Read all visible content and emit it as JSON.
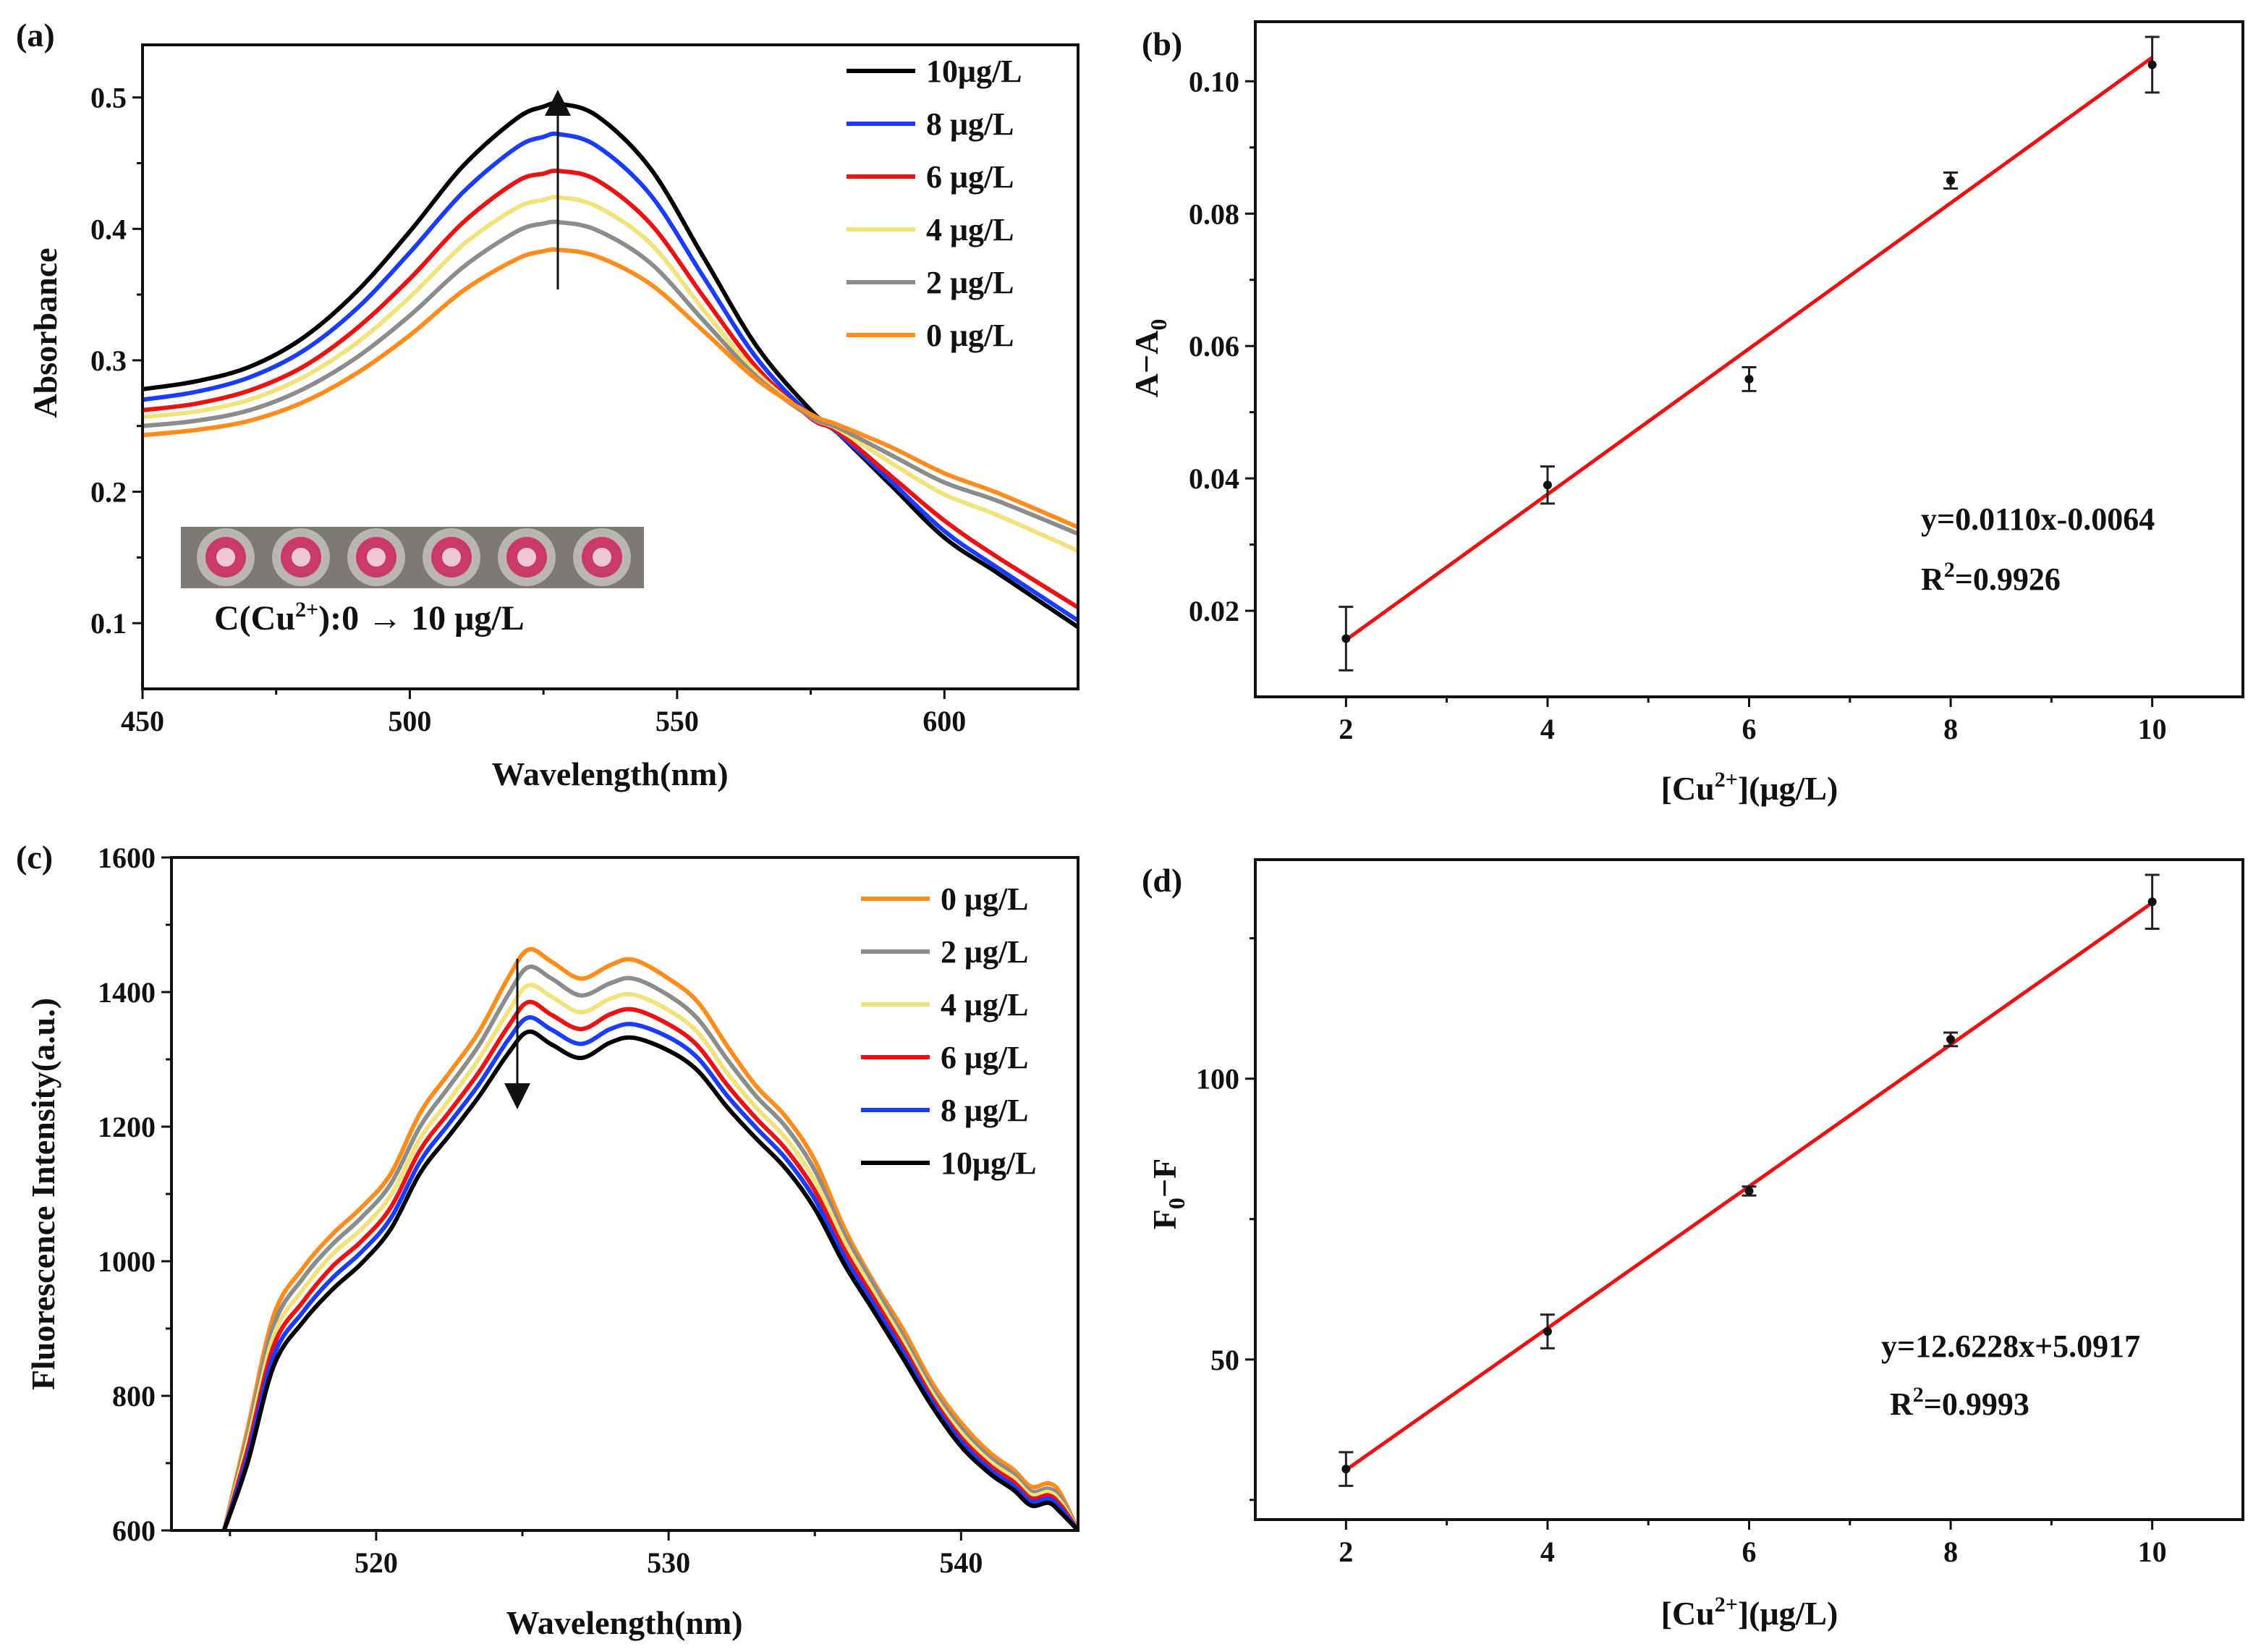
{
  "chart_data": [
    {
      "panel": "(a)",
      "type": "line",
      "title": "",
      "xlabel": "Wavelength(nm)",
      "ylabel": "Absorbance",
      "xlim": [
        450,
        625
      ],
      "ylim": [
        0.05,
        0.54
      ],
      "xticks": [
        450,
        500,
        550,
        600
      ],
      "yticks": [
        0.1,
        0.2,
        0.3,
        0.4,
        0.5
      ],
      "ytick_labels": [
        "0.1",
        "0.2",
        "0.3",
        "0.4",
        "0.5"
      ],
      "legend": "top-right",
      "inset_caption": "C(Cu2+):0 → 10 μg/L",
      "arrow": "up",
      "x": [
        450,
        460,
        470,
        480,
        490,
        500,
        510,
        520,
        525,
        528,
        535,
        545,
        555,
        565,
        575,
        580,
        590,
        600,
        610,
        625
      ],
      "series": [
        {
          "name": "10μg/L",
          "color": "#000000",
          "values": [
            0.278,
            0.284,
            0.295,
            0.317,
            0.352,
            0.398,
            0.448,
            0.484,
            0.493,
            0.495,
            0.486,
            0.446,
            0.378,
            0.31,
            0.262,
            0.245,
            0.205,
            0.165,
            0.138,
            0.097
          ]
        },
        {
          "name": "8  μg/L",
          "color": "#1a3cff",
          "values": [
            0.27,
            0.276,
            0.287,
            0.307,
            0.339,
            0.382,
            0.428,
            0.462,
            0.47,
            0.472,
            0.463,
            0.426,
            0.363,
            0.301,
            0.258,
            0.245,
            0.208,
            0.17,
            0.142,
            0.102
          ]
        },
        {
          "name": "6  μg/L",
          "color": "#ee1111",
          "values": [
            0.262,
            0.267,
            0.277,
            0.295,
            0.324,
            0.362,
            0.405,
            0.436,
            0.442,
            0.444,
            0.437,
            0.404,
            0.348,
            0.294,
            0.256,
            0.246,
            0.212,
            0.178,
            0.15,
            0.112
          ]
        },
        {
          "name": "4  μg/L",
          "color": "#f2e27a",
          "values": [
            0.257,
            0.261,
            0.27,
            0.287,
            0.313,
            0.348,
            0.388,
            0.416,
            0.422,
            0.424,
            0.417,
            0.389,
            0.338,
            0.29,
            0.257,
            0.248,
            0.222,
            0.198,
            0.182,
            0.155
          ]
        },
        {
          "name": "2  μg/L",
          "color": "#8c8c8c",
          "values": [
            0.25,
            0.254,
            0.262,
            0.278,
            0.302,
            0.334,
            0.371,
            0.398,
            0.404,
            0.405,
            0.399,
            0.374,
            0.33,
            0.287,
            0.257,
            0.249,
            0.228,
            0.207,
            0.193,
            0.168
          ]
        },
        {
          "name": "0  μg/L",
          "color": "#ff8c1a",
          "values": [
            0.243,
            0.247,
            0.254,
            0.268,
            0.29,
            0.319,
            0.353,
            0.377,
            0.383,
            0.384,
            0.379,
            0.358,
            0.322,
            0.285,
            0.259,
            0.251,
            0.234,
            0.214,
            0.199,
            0.173
          ]
        }
      ]
    },
    {
      "panel": "(b)",
      "type": "scatter",
      "title": "",
      "xlabel": "[Cu2+](μg/L)",
      "ylabel": "A−A0",
      "xlim": [
        1.1,
        10.9
      ],
      "ylim": [
        0.007,
        0.109
      ],
      "xticks": [
        2,
        4,
        6,
        8,
        10
      ],
      "yticks": [
        0.02,
        0.04,
        0.06,
        0.08,
        0.1
      ],
      "ytick_labels": [
        "0.02",
        "0.04",
        "0.06",
        "0.08",
        "0.10"
      ],
      "x": [
        2,
        4,
        6,
        8,
        10
      ],
      "values": [
        0.0158,
        0.039,
        0.055,
        0.085,
        0.1025
      ],
      "errors": [
        0.0048,
        0.0028,
        0.0018,
        0.0012,
        0.0042
      ],
      "fit": {
        "slope": 0.011,
        "intercept": -0.0064
      },
      "equation": "y=0.0110x-0.0064",
      "r2_value": "0.9926"
    },
    {
      "panel": "(c)",
      "type": "line",
      "title": "",
      "xlabel": "Wavelength(nm)",
      "ylabel": "Fluorescence Intensity(a.u.)",
      "xlim": [
        513,
        544
      ],
      "ylim": [
        600,
        1600
      ],
      "xticks": [
        520,
        530,
        540
      ],
      "yticks": [
        600,
        800,
        1000,
        1200,
        1400,
        1600
      ],
      "ytick_labels": [
        "600",
        "800",
        "1000",
        "1200",
        "1400",
        "1600"
      ],
      "legend": "top-right",
      "arrow": "down",
      "x": [
        514.8,
        515.6,
        516.5,
        517.5,
        518.5,
        519.5,
        520.5,
        521.5,
        522.5,
        523.5,
        524.5,
        525.2,
        526,
        527,
        528,
        528.8,
        530,
        531,
        532,
        533,
        534,
        535,
        536,
        537,
        538,
        539,
        540,
        541,
        541.8,
        542.4,
        543,
        543.4,
        544
      ],
      "series": [
        {
          "name": "0  μg/L",
          "color": "#ff8c1a",
          "values": [
            600,
            750,
            920,
            990,
            1040,
            1080,
            1130,
            1220,
            1280,
            1340,
            1420,
            1463,
            1445,
            1420,
            1440,
            1448,
            1420,
            1385,
            1320,
            1260,
            1215,
            1150,
            1050,
            970,
            900,
            820,
            760,
            715,
            690,
            665,
            670,
            655,
            600
          ]
        },
        {
          "name": "2  μg/L",
          "color": "#8c8c8c",
          "values": [
            600,
            740,
            905,
            975,
            1025,
            1065,
            1115,
            1200,
            1260,
            1320,
            1395,
            1437,
            1420,
            1395,
            1413,
            1420,
            1395,
            1360,
            1300,
            1245,
            1200,
            1135,
            1040,
            965,
            890,
            812,
            752,
            708,
            684,
            658,
            662,
            648,
            600
          ]
        },
        {
          "name": "4  μg/L",
          "color": "#f2e27a",
          "values": [
            600,
            730,
            890,
            958,
            1010,
            1048,
            1098,
            1182,
            1240,
            1300,
            1370,
            1410,
            1393,
            1370,
            1390,
            1396,
            1373,
            1340,
            1280,
            1228,
            1183,
            1120,
            1030,
            955,
            882,
            805,
            745,
            702,
            678,
            653,
            657,
            643,
            600
          ]
        },
        {
          "name": "6  μg/L",
          "color": "#ee1111",
          "values": [
            600,
            720,
            875,
            940,
            992,
            1030,
            1080,
            1165,
            1222,
            1280,
            1348,
            1385,
            1366,
            1345,
            1367,
            1374,
            1352,
            1320,
            1262,
            1212,
            1167,
            1105,
            1018,
            946,
            874,
            798,
            738,
            696,
            672,
            648,
            652,
            638,
            600
          ]
        },
        {
          "name": "8  μg/L",
          "color": "#1a3cff",
          "values": [
            600,
            710,
            860,
            925,
            975,
            1014,
            1064,
            1148,
            1205,
            1262,
            1328,
            1362,
            1344,
            1323,
            1345,
            1352,
            1333,
            1302,
            1246,
            1198,
            1153,
            1092,
            1007,
            937,
            866,
            792,
            732,
            690,
            666,
            643,
            647,
            633,
            600
          ]
        },
        {
          "name": "10μg/L",
          "color": "#000000",
          "values": [
            600,
            700,
            845,
            910,
            958,
            997,
            1048,
            1131,
            1187,
            1244,
            1308,
            1341,
            1322,
            1302,
            1325,
            1332,
            1313,
            1283,
            1229,
            1182,
            1138,
            1078,
            996,
            927,
            857,
            785,
            725,
            684,
            660,
            637,
            641,
            627,
            600
          ]
        }
      ]
    },
    {
      "panel": "(d)",
      "type": "scatter",
      "title": "",
      "xlabel": "[Cu2+](μg/L)",
      "ylabel": "F0−F",
      "xlim": [
        1.1,
        10.9
      ],
      "ylim": [
        21.5,
        139
      ],
      "xticks": [
        2,
        4,
        6,
        8,
        10
      ],
      "yticks": [
        50,
        100
      ],
      "ytick_labels": [
        "50",
        "100"
      ],
      "x": [
        2,
        4,
        6,
        8,
        10
      ],
      "values": [
        30.5,
        55.0,
        80.0,
        107.0,
        131.5
      ],
      "errors": [
        3.0,
        3.0,
        0.8,
        1.2,
        4.8
      ],
      "fit": {
        "slope": 12.6228,
        "intercept": 5.0917
      },
      "equation": "y=12.6228x+5.0917",
      "r2_value": "0.9993"
    }
  ]
}
